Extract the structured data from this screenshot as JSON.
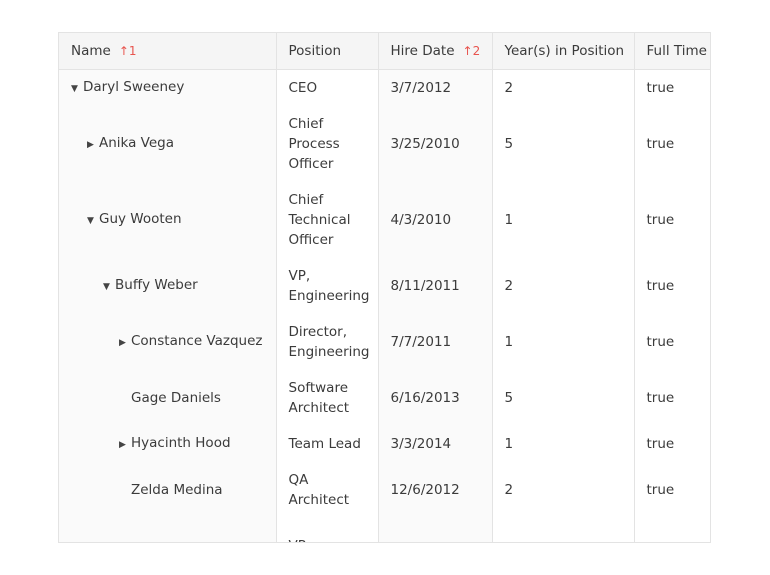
{
  "columns": [
    {
      "label": "Name",
      "sort_icon": "arrow-up-icon",
      "sort_order": "1"
    },
    {
      "label": "Position"
    },
    {
      "label": "Hire Date",
      "sort_icon": "arrow-up-icon",
      "sort_order": "2"
    },
    {
      "label": "Year(s) in Position"
    },
    {
      "label": "Full Time"
    }
  ],
  "rows": [
    {
      "name": "Daryl Sweeney",
      "level": 0,
      "toggle": "expanded",
      "position": "CEO",
      "hire": "3/7/2012",
      "years": "2",
      "full": "true",
      "h": 36
    },
    {
      "name": "Anika Vega",
      "level": 1,
      "toggle": "collapsed",
      "position": "Chief Process Officer",
      "hire": "3/25/2010",
      "years": "5",
      "full": "true",
      "h": 76
    },
    {
      "name": "Guy Wooten",
      "level": 1,
      "toggle": "expanded",
      "position": "Chief Technical Officer",
      "hire": "4/3/2010",
      "years": "1",
      "full": "true",
      "h": 76
    },
    {
      "name": "Buffy Weber",
      "level": 2,
      "toggle": "expanded",
      "position": "VP, Engineering",
      "hire": "8/11/2011",
      "years": "2",
      "full": "true",
      "h": 56
    },
    {
      "name": "Constance Vazquez",
      "level": 3,
      "toggle": "collapsed",
      "position": "Director, Engineering",
      "hire": "7/7/2011",
      "years": "1",
      "full": "true",
      "h": 56
    },
    {
      "name": "Gage Daniels",
      "level": 3,
      "toggle": "none",
      "position": "Software Architect",
      "hire": "6/16/2013",
      "years": "5",
      "full": "true",
      "h": 56
    },
    {
      "name": "Hyacinth Hood",
      "level": 3,
      "toggle": "collapsed",
      "position": "Team Lead",
      "hire": "3/3/2014",
      "years": "1",
      "full": "true",
      "h": 36
    },
    {
      "name": "Zelda Medina",
      "level": 3,
      "toggle": "none",
      "position": "QA Architect",
      "hire": "12/6/2012",
      "years": "2",
      "full": "true",
      "h": 56
    },
    {
      "name": "",
      "level": 2,
      "toggle": "none",
      "position": "VP,",
      "hire": "",
      "years": "",
      "full": "",
      "h": 56
    }
  ],
  "colors": {
    "sort_indicator": "#e8544e",
    "header_bg": "#f5f5f5",
    "sorted_col_bg": "#fafafa"
  }
}
